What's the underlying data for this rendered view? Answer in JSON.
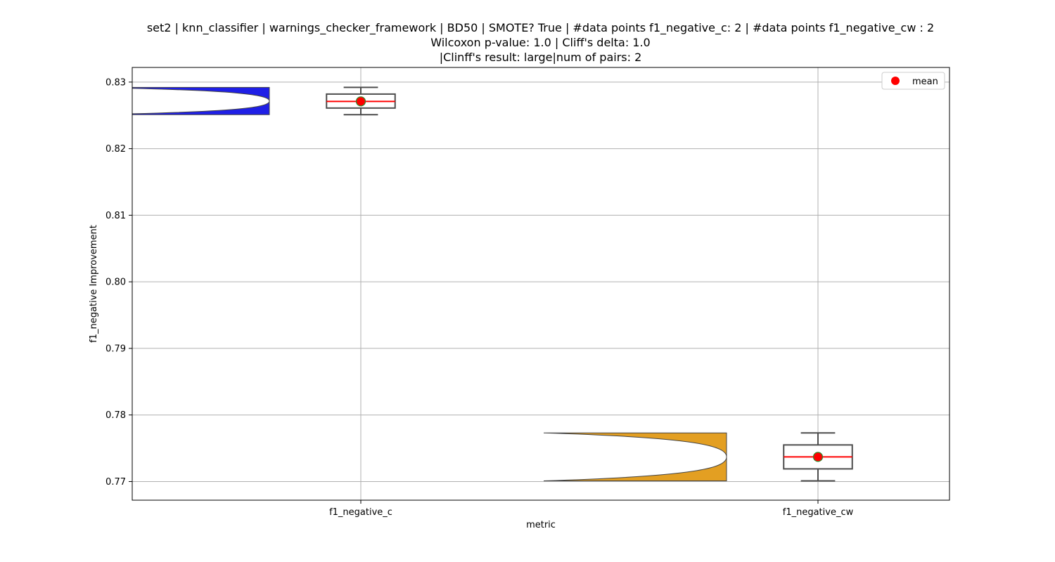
{
  "chart_data": {
    "type": "violin+box",
    "title_lines": [
      "set2 | knn_classifier | warnings_checker_framework | BD50 | SMOTE? True | #data points f1_negative_c: 2 | #data points f1_negative_cw : 2",
      "Wilcoxon p-value: 1.0 | Cliff's delta: 1.0",
      "|Clinff's result: large|num of pairs: 2"
    ],
    "xlabel": "metric",
    "ylabel": "f1_negative Improvement",
    "categories": [
      "f1_negative_c",
      "f1_negative_cw"
    ],
    "ylim": [
      0.7672,
      0.8322
    ],
    "yticks": [
      0.77,
      0.78,
      0.79,
      0.8,
      0.81,
      0.82,
      0.83
    ],
    "ytick_labels": [
      "0.77",
      "0.78",
      "0.79",
      "0.80",
      "0.81",
      "0.82",
      "0.83"
    ],
    "grid": true,
    "legend": {
      "position": "top-right",
      "entries": [
        {
          "label": "mean",
          "color": "#ff0000"
        }
      ]
    },
    "series": [
      {
        "category": "f1_negative_c",
        "values": [
          0.8251,
          0.8292
        ],
        "min": 0.8251,
        "q1": 0.8261,
        "median": 0.8271,
        "q3": 0.8282,
        "max": 0.8292,
        "mean": 0.8271,
        "violin_color": "#1f1fe6"
      },
      {
        "category": "f1_negative_cw",
        "values": [
          0.7701,
          0.7773
        ],
        "min": 0.7701,
        "q1": 0.7719,
        "median": 0.7737,
        "q3": 0.7755,
        "max": 0.7773,
        "mean": 0.7737,
        "violin_color": "#e39f22"
      }
    ],
    "colors": {
      "mean_marker": "#ff0000",
      "mean_edge": "#2e8b2e",
      "median_line": "#ff0000",
      "box_edge": "#4d4d4d",
      "grid": "#b0b0b0"
    }
  }
}
